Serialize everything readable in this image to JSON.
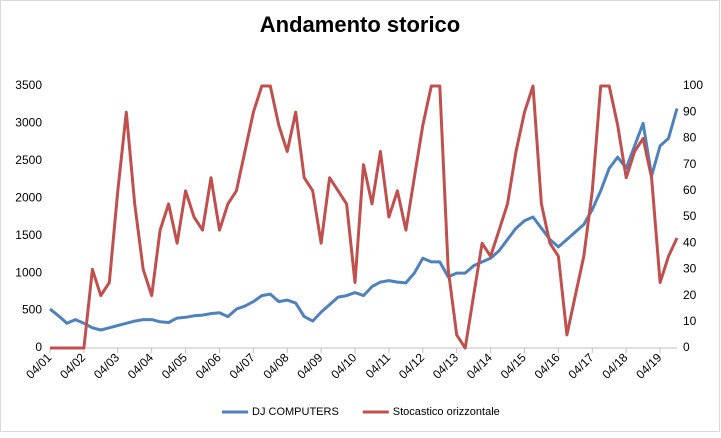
{
  "chart_data": {
    "type": "line",
    "title": "Andamento storico",
    "categories": [
      "04/01",
      null,
      null,
      null,
      "04/02",
      null,
      null,
      null,
      "04/03",
      null,
      null,
      null,
      "04/04",
      null,
      null,
      null,
      "04/05",
      null,
      null,
      null,
      "04/06",
      null,
      null,
      null,
      "04/07",
      null,
      null,
      null,
      "04/08",
      null,
      null,
      null,
      "04/09",
      null,
      null,
      null,
      "04/10",
      null,
      null,
      null,
      "04/11",
      null,
      null,
      null,
      "04/12",
      null,
      null,
      null,
      "04/13",
      null,
      null,
      null,
      "04/14",
      null,
      null,
      null,
      "04/15",
      null,
      null,
      null,
      "04/16",
      null,
      null,
      null,
      "04/17",
      null,
      null,
      null,
      "04/18",
      null,
      null,
      null,
      "04/19",
      null,
      null
    ],
    "series": [
      {
        "name": "DJ COMPUTERS",
        "color": "#4f81bd",
        "values": [
          520,
          430,
          330,
          380,
          330,
          270,
          240,
          270,
          300,
          330,
          360,
          380,
          380,
          350,
          340,
          400,
          410,
          430,
          440,
          460,
          470,
          420,
          520,
          560,
          620,
          700,
          720,
          620,
          640,
          600,
          420,
          360,
          480,
          580,
          680,
          700,
          740,
          700,
          820,
          880,
          900,
          880,
          870,
          1000,
          1200,
          1150,
          1150,
          950,
          1000,
          1000,
          1100,
          1150,
          1200,
          1300,
          1450,
          1600,
          1700,
          1750,
          1600,
          1450,
          1350,
          1450,
          1550,
          1650,
          1850,
          2100,
          2400,
          2550,
          2400,
          2700,
          3000,
          2300,
          2700,
          2800,
          3200
        ]
      },
      {
        "name": "Stocastico orizzontale",
        "color": "#c0504d",
        "axis": "y2",
        "values": [
          0,
          0,
          0,
          0,
          0,
          30,
          20,
          25,
          60,
          90,
          55,
          30,
          20,
          45,
          55,
          40,
          60,
          50,
          45,
          65,
          45,
          55,
          60,
          75,
          90,
          100,
          100,
          85,
          75,
          90,
          65,
          60,
          40,
          65,
          60,
          55,
          25,
          70,
          55,
          75,
          50,
          60,
          45,
          65,
          85,
          100,
          100,
          30,
          5,
          0,
          20,
          40,
          35,
          45,
          55,
          75,
          90,
          100,
          55,
          40,
          35,
          5,
          20,
          35,
          60,
          100,
          100,
          85,
          65,
          75,
          80,
          65,
          25,
          35,
          42
        ]
      }
    ],
    "ylim": [
      0,
      3500
    ],
    "yticks": [
      0,
      500,
      1000,
      1500,
      2000,
      2500,
      3000,
      3500
    ],
    "y2lim": [
      0,
      100
    ],
    "y2ticks": [
      0,
      10,
      20,
      30,
      40,
      50,
      60,
      70,
      80,
      90,
      100
    ],
    "legend": "bottom"
  }
}
